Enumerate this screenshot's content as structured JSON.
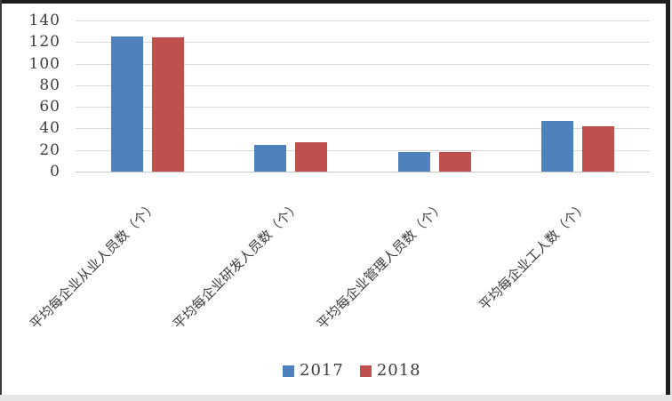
{
  "chart_data": {
    "type": "bar",
    "categories": [
      "平均每企业从业人员数（个）",
      "平均每企业研发人员数（个）",
      "平均每企业管理人员数（个）",
      "平均每企业工人数（个）"
    ],
    "series": [
      {
        "name": "2017",
        "color": "#4F81BD",
        "values": [
          125,
          25,
          18,
          47
        ]
      },
      {
        "name": "2018",
        "color": "#C0504D",
        "values": [
          124,
          27,
          18,
          42
        ]
      }
    ],
    "title": "",
    "xlabel": "",
    "ylabel": "",
    "ylim": [
      0,
      140
    ],
    "ytick_step": 20,
    "yticks": [
      "0",
      "20",
      "40",
      "60",
      "80",
      "100",
      "120",
      "140"
    ],
    "grid": true,
    "legend_position": "bottom"
  },
  "colors": {
    "series_2017": "#4F81BD",
    "series_2018": "#C0504D",
    "gridline": "#D9D9D9",
    "axis_line": "#C6C6C6",
    "text": "#3C3C3C",
    "background": "#FFFFFF"
  }
}
